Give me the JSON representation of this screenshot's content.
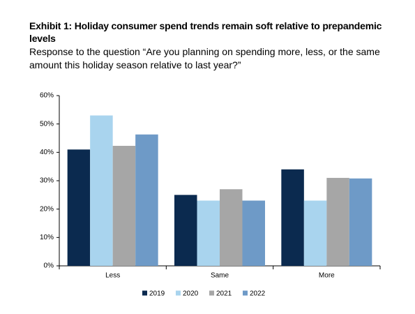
{
  "chart_data": {
    "type": "bar",
    "title": "Exhibit 1: Holiday consumer spend trends remain soft relative to prepandemic levels",
    "subtitle": "Response to the question “Are you planning on spending more, less, or the same amount this holiday season relative to last year?”",
    "categories": [
      "Less",
      "Same",
      "More"
    ],
    "series": [
      {
        "name": "2019",
        "color": "#0b2a4f",
        "values": [
          41,
          25,
          34
        ]
      },
      {
        "name": "2020",
        "color": "#a9d4ee",
        "values": [
          53,
          23,
          23
        ]
      },
      {
        "name": "2021",
        "color": "#a6a6a6",
        "values": [
          42.3,
          27,
          31
        ]
      },
      {
        "name": "2022",
        "color": "#6e9ac7",
        "values": [
          46.3,
          23,
          30.8
        ]
      }
    ],
    "ylim": [
      0,
      60
    ],
    "yticks": [
      {
        "value": 0,
        "label": "0%"
      },
      {
        "value": 10,
        "label": "10%"
      },
      {
        "value": 20,
        "label": "20%"
      },
      {
        "value": 30,
        "label": "30%"
      },
      {
        "value": 40,
        "label": "40%"
      },
      {
        "value": 50,
        "label": "50%"
      },
      {
        "value": 60,
        "label": "60%"
      }
    ],
    "grid": false,
    "legend": "bottom"
  }
}
